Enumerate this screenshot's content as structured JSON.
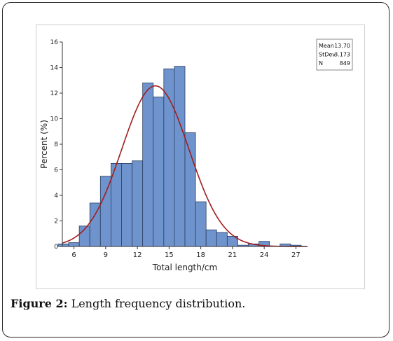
{
  "caption": {
    "label": "Figure 2:",
    "text": "Length frequency distribution."
  },
  "colors": {
    "bar_fill": "#6f93cc",
    "bar_stroke": "#2a3f63",
    "curve": "#a01e1e",
    "axis": "#333333"
  },
  "chart_data": {
    "type": "bar",
    "xlabel": "Total length/cm",
    "ylabel": "Percent (%)",
    "xlim": [
      4.9,
      28.1
    ],
    "ylim": [
      0,
      16
    ],
    "xticks": [
      6,
      9,
      12,
      15,
      18,
      21,
      24,
      27
    ],
    "xtick_labels": [
      "6",
      "9",
      "12",
      "15",
      "18",
      "21",
      "24",
      "27"
    ],
    "yticks": [
      0,
      2,
      4,
      6,
      8,
      10,
      12,
      14,
      16
    ],
    "ytick_labels": [
      "0",
      "2",
      "4",
      "6",
      "8",
      "10",
      "12",
      "14",
      "16"
    ],
    "bin_width": 1,
    "bins": [
      {
        "x": 5,
        "value": 0.2
      },
      {
        "x": 6,
        "value": 0.3
      },
      {
        "x": 7,
        "value": 1.6
      },
      {
        "x": 8,
        "value": 3.4
      },
      {
        "x": 9,
        "value": 5.5
      },
      {
        "x": 10,
        "value": 6.5
      },
      {
        "x": 11,
        "value": 6.5
      },
      {
        "x": 12,
        "value": 6.7
      },
      {
        "x": 13,
        "value": 12.8
      },
      {
        "x": 14,
        "value": 11.7
      },
      {
        "x": 15,
        "value": 13.9
      },
      {
        "x": 16,
        "value": 14.1
      },
      {
        "x": 17,
        "value": 8.9
      },
      {
        "x": 18,
        "value": 3.5
      },
      {
        "x": 19,
        "value": 1.3
      },
      {
        "x": 20,
        "value": 1.1
      },
      {
        "x": 21,
        "value": 0.8
      },
      {
        "x": 22,
        "value": 0.1
      },
      {
        "x": 23,
        "value": 0.2
      },
      {
        "x": 24,
        "value": 0.4
      },
      {
        "x": 26,
        "value": 0.2
      },
      {
        "x": 27,
        "value": 0.1
      }
    ],
    "fit_curve": {
      "type": "normal",
      "mean": 13.7,
      "stdev": 3.173
    },
    "stats": [
      {
        "name": "Mean",
        "value": "13.70"
      },
      {
        "name": "StDev",
        "value": "3.173"
      },
      {
        "name": "N",
        "value": "849"
      }
    ],
    "legend_position": "top-right",
    "grid": false
  }
}
